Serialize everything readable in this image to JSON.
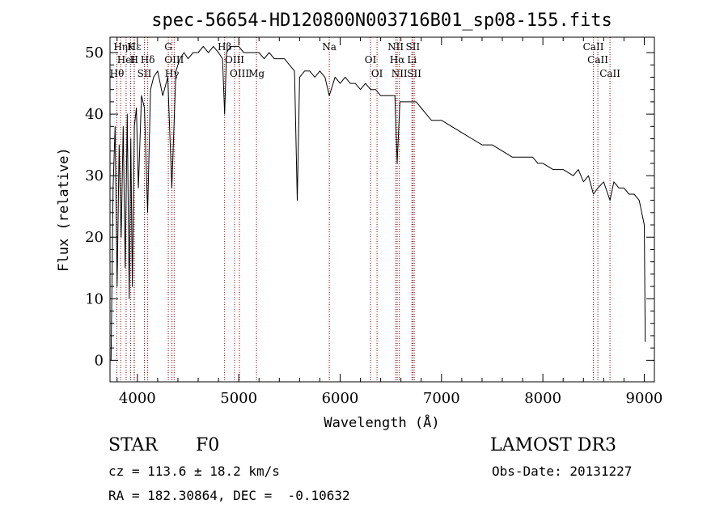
{
  "chart_data": {
    "type": "line",
    "title": "spec-56654-HD120800N003716B01_sp08-155.fits",
    "xlabel": "Wavelength (Å)",
    "ylabel": "Flux (relative)",
    "xlim": [
      3730,
      9100
    ],
    "ylim": [
      -3.5,
      52.5
    ],
    "xticks": [
      4000,
      5000,
      6000,
      7000,
      8000,
      9000
    ],
    "yticks": [
      0,
      10,
      20,
      30,
      40,
      50
    ],
    "grid": false,
    "series": [
      {
        "name": "spectrum",
        "x": [
          3740,
          3760,
          3780,
          3800,
          3820,
          3840,
          3860,
          3880,
          3900,
          3920,
          3935,
          3950,
          3970,
          3990,
          4010,
          4040,
          4070,
          4101,
          4130,
          4160,
          4200,
          4250,
          4300,
          4340,
          4380,
          4420,
          4460,
          4500,
          4550,
          4600,
          4650,
          4700,
          4750,
          4800,
          4840,
          4861,
          4880,
          4920,
          4960,
          5000,
          5050,
          5100,
          5150,
          5200,
          5250,
          5300,
          5350,
          5400,
          5450,
          5500,
          5550,
          5577,
          5600,
          5650,
          5700,
          5750,
          5800,
          5850,
          5893,
          5950,
          6000,
          6050,
          6100,
          6150,
          6200,
          6250,
          6300,
          6350,
          6400,
          6450,
          6500,
          6540,
          6563,
          6590,
          6620,
          6660,
          6700,
          6750,
          6800,
          6850,
          6900,
          6950,
          7000,
          7100,
          7200,
          7300,
          7400,
          7500,
          7600,
          7700,
          7800,
          7900,
          7950,
          8000,
          8100,
          8200,
          8300,
          8350,
          8400,
          8450,
          8498,
          8542,
          8600,
          8662,
          8700,
          8750,
          8800,
          8850,
          8900,
          8950,
          9000,
          9010
        ],
        "values": [
          0,
          28,
          38,
          12,
          35,
          20,
          38,
          15,
          40,
          10,
          36,
          12,
          38,
          41,
          28,
          43,
          41,
          24,
          44,
          46,
          47,
          43,
          46,
          28,
          47,
          49,
          50,
          49,
          50,
          50,
          51,
          50,
          51,
          50,
          49,
          40,
          50,
          51,
          51,
          51,
          50,
          50,
          50,
          50,
          49,
          50,
          49,
          49,
          49,
          48,
          47,
          26,
          46,
          47,
          47,
          46,
          47,
          46,
          43,
          46,
          45,
          46,
          45,
          45,
          44,
          45,
          44,
          44,
          43,
          43,
          43,
          43,
          32,
          42,
          42,
          42,
          42,
          42,
          41,
          40,
          39,
          39,
          39,
          38,
          37,
          36,
          35,
          35,
          34,
          33,
          33,
          33,
          32,
          32,
          31,
          31,
          30,
          31,
          29,
          30,
          27,
          28,
          29,
          26,
          29,
          28,
          28,
          27,
          27,
          26,
          22,
          3
        ]
      }
    ],
    "line_labels": [
      {
        "label": "Hε",
        "wl": 3970
      },
      {
        "label": "HeI",
        "wl": 3889
      },
      {
        "label": "SII",
        "wl": 4069
      },
      {
        "label": "Hη",
        "wl": 3835
      },
      {
        "label": "H",
        "wl": 3968
      },
      {
        "label": "Hθ",
        "wl": 3798
      },
      {
        "label": "K",
        "wl": 3934
      },
      {
        "label": "Hδ",
        "wl": 4102
      },
      {
        "label": "Hγ",
        "wl": 4341
      },
      {
        "label": "G",
        "wl": 4305
      },
      {
        "label": "OIII",
        "wl": 4363
      },
      {
        "label": "OIII",
        "wl": 5007
      },
      {
        "label": "Hβ",
        "wl": 4861
      },
      {
        "label": "OIII",
        "wl": 4959
      },
      {
        "label": "Mg",
        "wl": 5175
      },
      {
        "label": "Na",
        "wl": 5893
      },
      {
        "label": "OI",
        "wl": 6300
      },
      {
        "label": "OI",
        "wl": 6364
      },
      {
        "label": "NII",
        "wl": 6548
      },
      {
        "label": "Li",
        "wl": 6708
      },
      {
        "label": "NII",
        "wl": 6584
      },
      {
        "label": "SII",
        "wl": 6717
      },
      {
        "label": "Hα",
        "wl": 6563
      },
      {
        "label": "SII",
        "wl": 6731
      },
      {
        "label": "CaII",
        "wl": 8498
      },
      {
        "label": "CaII",
        "wl": 8542
      },
      {
        "label": "CaII",
        "wl": 8662
      }
    ]
  },
  "info": {
    "object_class": "STAR",
    "subclass": "F0",
    "survey": "LAMOST DR3",
    "redshift": "cz = 113.6 ± 18.2 km/s",
    "obs_date": "Obs-Date: 20131227",
    "coords": "RA = 182.30864, DEC =  -0.10632"
  },
  "colors": {
    "line": "#000000",
    "marker": "#8b0000",
    "background": "#ffffff"
  }
}
